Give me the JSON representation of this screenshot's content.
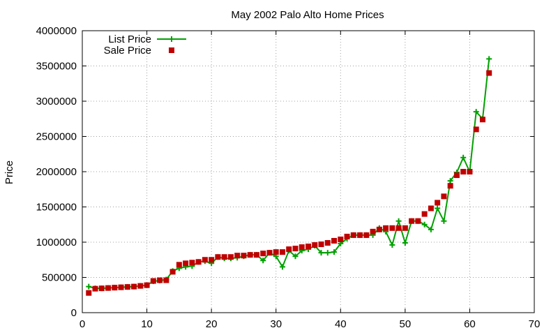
{
  "chart_data": {
    "type": "line",
    "title": "May 2002 Palo Alto Home Prices",
    "xlabel": "",
    "ylabel": "Price",
    "xlim": [
      0,
      70
    ],
    "ylim": [
      0,
      4000000
    ],
    "x_ticks": [
      0,
      10,
      20,
      30,
      40,
      50,
      60,
      70
    ],
    "y_ticks": [
      0,
      500000,
      1000000,
      1500000,
      2000000,
      2500000,
      3000000,
      3500000,
      4000000
    ],
    "grid": true,
    "legend_position": "top-left",
    "series": [
      {
        "name": "List Price",
        "style": "lines+plus-points",
        "color": "#00a000",
        "x": [
          1,
          2,
          3,
          4,
          5,
          6,
          7,
          8,
          9,
          10,
          11,
          12,
          13,
          14,
          15,
          16,
          17,
          18,
          19,
          20,
          21,
          22,
          23,
          24,
          25,
          26,
          27,
          28,
          29,
          30,
          31,
          32,
          33,
          34,
          35,
          36,
          37,
          38,
          39,
          40,
          41,
          42,
          43,
          44,
          45,
          46,
          47,
          48,
          49,
          50,
          51,
          52,
          53,
          54,
          55,
          56,
          57,
          58,
          59,
          60,
          61,
          62,
          63
        ],
        "values": [
          370000,
          345000,
          345000,
          350000,
          355000,
          360000,
          365000,
          370000,
          380000,
          390000,
          445000,
          455000,
          470000,
          590000,
          630000,
          650000,
          660000,
          720000,
          730000,
          700000,
          790000,
          770000,
          770000,
          780000,
          800000,
          820000,
          820000,
          740000,
          850000,
          800000,
          650000,
          880000,
          800000,
          880000,
          900000,
          950000,
          850000,
          850000,
          860000,
          980000,
          1050000,
          1100000,
          1100000,
          1100000,
          1100000,
          1200000,
          1150000,
          960000,
          1300000,
          990000,
          1300000,
          1300000,
          1250000,
          1180000,
          1480000,
          1300000,
          1870000,
          1990000,
          2200000,
          2000000,
          2850000,
          2750000,
          3600000
        ]
      },
      {
        "name": "Sale Price",
        "style": "square-points",
        "color": "#c00000",
        "x": [
          1,
          2,
          3,
          4,
          5,
          6,
          7,
          8,
          9,
          10,
          11,
          12,
          13,
          14,
          15,
          16,
          17,
          18,
          19,
          20,
          21,
          22,
          23,
          24,
          25,
          26,
          27,
          28,
          29,
          30,
          31,
          32,
          33,
          34,
          35,
          36,
          37,
          38,
          39,
          40,
          41,
          42,
          43,
          44,
          45,
          46,
          47,
          48,
          49,
          50,
          51,
          52,
          53,
          54,
          55,
          56,
          57,
          58,
          59,
          60,
          61,
          62,
          63
        ],
        "values": [
          280000,
          340000,
          345000,
          350000,
          355000,
          360000,
          365000,
          370000,
          380000,
          390000,
          450000,
          460000,
          460000,
          580000,
          680000,
          700000,
          710000,
          720000,
          750000,
          750000,
          790000,
          790000,
          790000,
          810000,
          810000,
          820000,
          820000,
          840000,
          850000,
          860000,
          860000,
          900000,
          910000,
          930000,
          940000,
          960000,
          970000,
          990000,
          1020000,
          1040000,
          1080000,
          1100000,
          1100000,
          1100000,
          1150000,
          1180000,
          1200000,
          1200000,
          1200000,
          1200000,
          1300000,
          1300000,
          1400000,
          1480000,
          1560000,
          1650000,
          1800000,
          1950000,
          2000000,
          2000000,
          2600000,
          2740000,
          3400000
        ]
      }
    ]
  }
}
